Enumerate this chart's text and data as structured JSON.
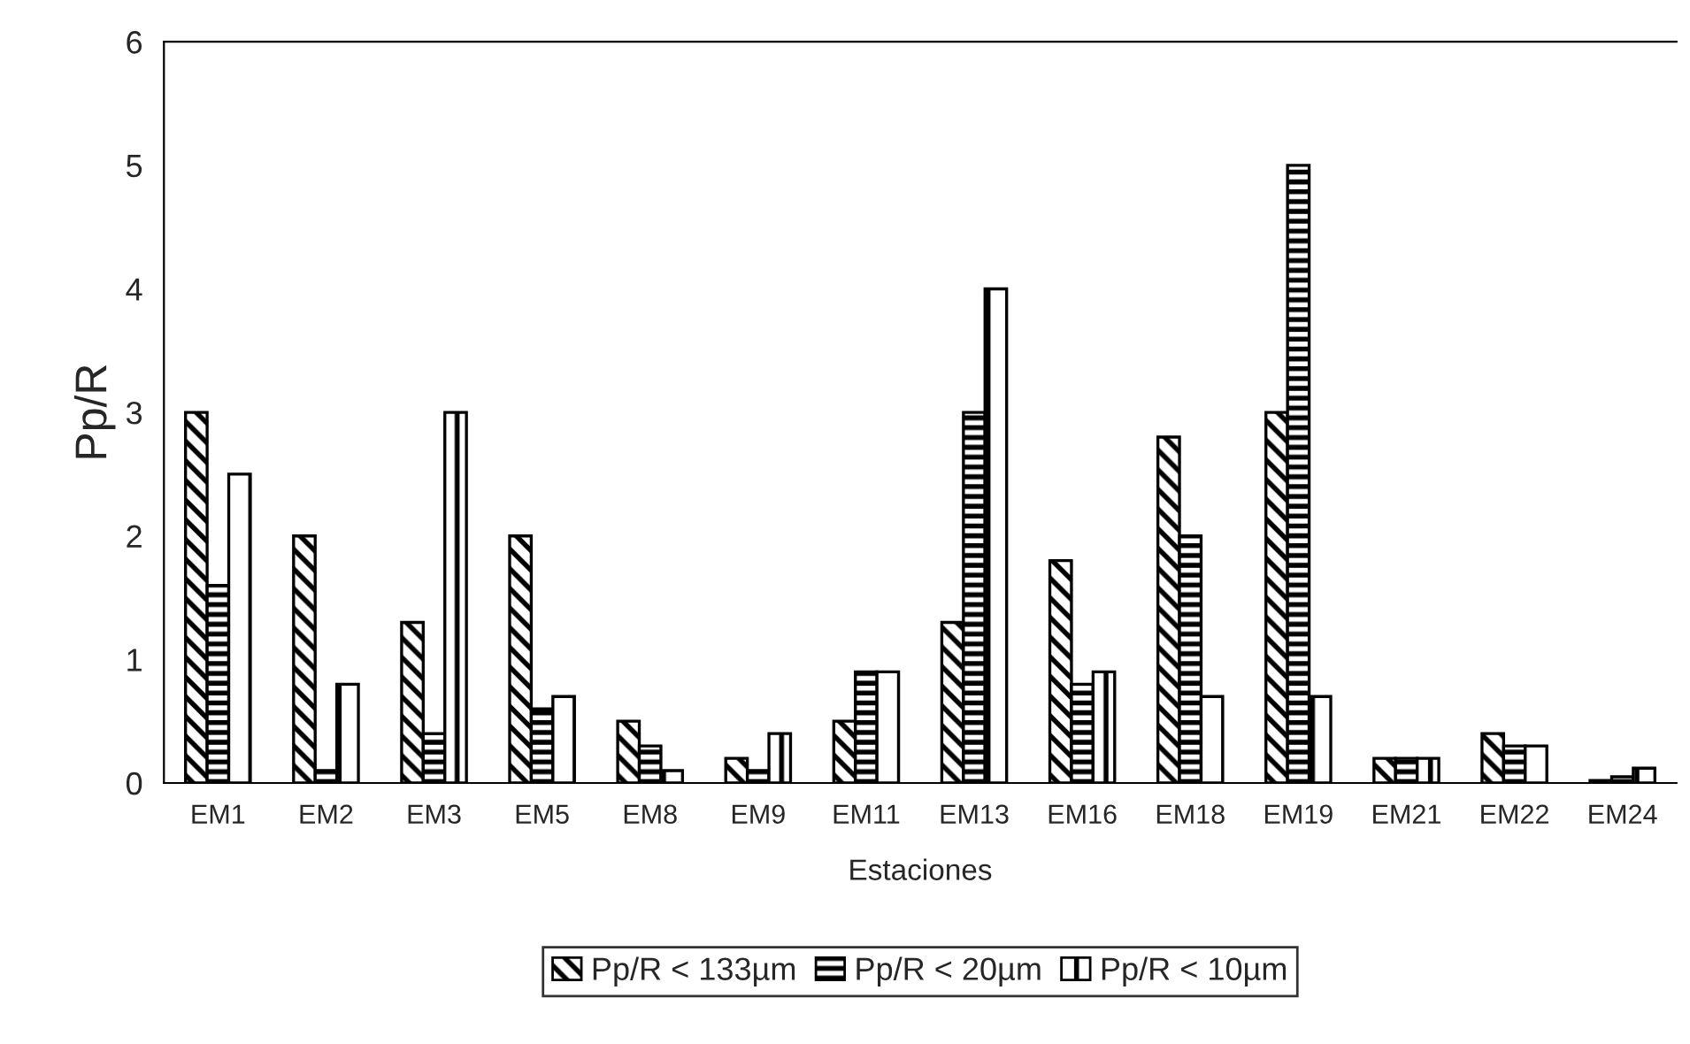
{
  "chart_data": {
    "type": "bar",
    "xlabel": "Estaciones",
    "ylabel": "Pp/R",
    "categories": [
      "EM1",
      "EM2",
      "EM3",
      "EM5",
      "EM8",
      "EM9",
      "EM11",
      "EM13",
      "EM16",
      "EM18",
      "EM19",
      "EM21",
      "EM22",
      "EM24"
    ],
    "series": [
      {
        "name": "Pp/R < 133µm",
        "color": "#000000",
        "values": [
          3.0,
          2.0,
          1.3,
          2.0,
          0.5,
          0.2,
          0.5,
          1.3,
          1.8,
          2.8,
          3.0,
          0.2,
          0.4,
          0.02
        ]
      },
      {
        "name": "Pp/R < 20µm",
        "color": "#000000",
        "values": [
          1.6,
          0.1,
          0.4,
          0.6,
          0.3,
          0.1,
          0.9,
          3.0,
          0.8,
          2.0,
          5.0,
          0.2,
          0.3,
          0.05
        ]
      },
      {
        "name": "Pp/R < 10µm",
        "color": "#000000",
        "values": [
          2.5,
          0.8,
          3.0,
          0.7,
          0.1,
          0.4,
          0.9,
          4.0,
          0.9,
          0.7,
          0.7,
          0.2,
          0.3,
          0.12
        ]
      }
    ],
    "ylim": [
      0,
      6
    ],
    "yticks": [
      0,
      1,
      2,
      3,
      4,
      5,
      6
    ],
    "grid": false,
    "legend": "bottom"
  }
}
